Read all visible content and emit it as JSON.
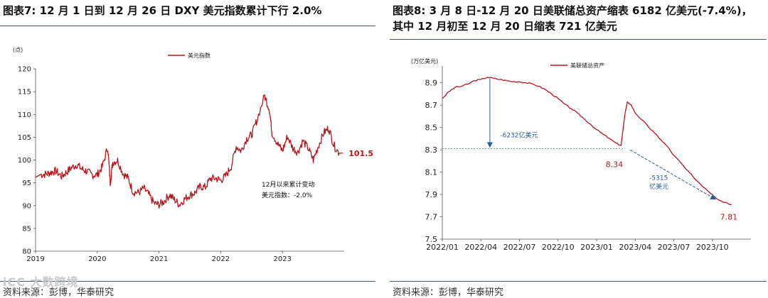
{
  "left": {
    "title": "图表7:  12 月 1 日到 12 月 26 日 DXY 美元指数累计下行 2.0%",
    "source": "资料来源：彭博，华泰研究",
    "watermark": "iCC 大数跨境"
  },
  "right": {
    "title_line1": "图表8:  3 月 8 日-12 月 20 日美联储总资产缩表 6182 亿美元(-7.4%)，",
    "title_line2": "其中 12 月初至 12 月 20 日缩表 721 亿美元",
    "source": "资料来源：彭博，华泰研究"
  },
  "colors": {
    "line": "#b4171c",
    "rule": "#3b5b86",
    "annotation": "#2a5c9c",
    "dashed_line": "#3aa66a"
  },
  "chart_data": [
    {
      "type": "line",
      "unit_label": "(点)",
      "series": [
        {
          "name": "美元指数"
        }
      ],
      "x_tick_labels": [
        "2019",
        "2020",
        "2021",
        "2022",
        "2023"
      ],
      "y_ticks": [
        80,
        85,
        90,
        95,
        100,
        105,
        110,
        115,
        120
      ],
      "ylim": [
        80,
        120
      ],
      "xlim": [
        2019.0,
        2024.0
      ],
      "points": [
        [
          2019.0,
          96.2
        ],
        [
          2019.08,
          96.8
        ],
        [
          2019.17,
          96.9
        ],
        [
          2019.25,
          97.3
        ],
        [
          2019.33,
          97.6
        ],
        [
          2019.42,
          96.4
        ],
        [
          2019.5,
          97.3
        ],
        [
          2019.58,
          98.3
        ],
        [
          2019.67,
          99.0
        ],
        [
          2019.75,
          98.0
        ],
        [
          2019.83,
          97.5
        ],
        [
          2019.92,
          96.7
        ],
        [
          2020.0,
          96.8
        ],
        [
          2020.08,
          98.5
        ],
        [
          2020.17,
          102.8
        ],
        [
          2020.21,
          95.0
        ],
        [
          2020.25,
          99.5
        ],
        [
          2020.33,
          99.9
        ],
        [
          2020.42,
          97.0
        ],
        [
          2020.5,
          96.0
        ],
        [
          2020.58,
          93.0
        ],
        [
          2020.67,
          92.8
        ],
        [
          2020.75,
          93.8
        ],
        [
          2020.83,
          92.5
        ],
        [
          2020.92,
          90.5
        ],
        [
          2021.0,
          90.2
        ],
        [
          2021.08,
          90.9
        ],
        [
          2021.17,
          92.4
        ],
        [
          2021.25,
          91.3
        ],
        [
          2021.33,
          90.2
        ],
        [
          2021.42,
          91.5
        ],
        [
          2021.5,
          92.3
        ],
        [
          2021.58,
          92.8
        ],
        [
          2021.67,
          94.2
        ],
        [
          2021.75,
          94.0
        ],
        [
          2021.83,
          95.9
        ],
        [
          2021.92,
          96.0
        ],
        [
          2022.0,
          95.5
        ],
        [
          2022.08,
          96.5
        ],
        [
          2022.17,
          98.6
        ],
        [
          2022.25,
          103.0
        ],
        [
          2022.33,
          102.0
        ],
        [
          2022.42,
          104.7
        ],
        [
          2022.5,
          105.5
        ],
        [
          2022.58,
          108.5
        ],
        [
          2022.71,
          114.1
        ],
        [
          2022.79,
          111.0
        ],
        [
          2022.83,
          106.0
        ],
        [
          2022.92,
          103.6
        ],
        [
          2023.0,
          102.0
        ],
        [
          2023.08,
          105.2
        ],
        [
          2023.17,
          102.6
        ],
        [
          2023.25,
          101.7
        ],
        [
          2023.33,
          104.2
        ],
        [
          2023.42,
          102.5
        ],
        [
          2023.5,
          100.0
        ],
        [
          2023.58,
          103.0
        ],
        [
          2023.67,
          106.0
        ],
        [
          2023.75,
          107.0
        ],
        [
          2023.83,
          103.3
        ],
        [
          2023.92,
          101.5
        ],
        [
          2023.98,
          101.5
        ]
      ],
      "end_value_label": "101.5",
      "annotation_line1": "12月以来累计变动",
      "annotation_line2": "美元指数：-2.0%"
    },
    {
      "type": "line",
      "unit_label": "(万亿美元)",
      "series": [
        {
          "name": "美联储总资产"
        }
      ],
      "x_tick_labels": [
        "2022/01",
        "2022/04",
        "2022/07",
        "2022/10",
        "2023/01",
        "2023/04",
        "2023/07",
        "2023/10"
      ],
      "y_ticks": [
        7.5,
        7.7,
        7.9,
        8.1,
        8.3,
        8.5,
        8.7,
        8.9
      ],
      "ylim": [
        7.5,
        9.0
      ],
      "xlim": [
        0,
        24
      ],
      "points": [
        [
          0.0,
          8.76
        ],
        [
          0.5,
          8.82
        ],
        [
          1.0,
          8.86
        ],
        [
          1.5,
          8.87
        ],
        [
          2.0,
          8.89
        ],
        [
          2.5,
          8.92
        ],
        [
          3.0,
          8.93
        ],
        [
          3.5,
          8.95
        ],
        [
          4.0,
          8.94
        ],
        [
          4.5,
          8.93
        ],
        [
          5.0,
          8.92
        ],
        [
          5.5,
          8.91
        ],
        [
          6.0,
          8.91
        ],
        [
          6.5,
          8.9
        ],
        [
          7.0,
          8.89
        ],
        [
          7.5,
          8.87
        ],
        [
          8.0,
          8.84
        ],
        [
          8.5,
          8.8
        ],
        [
          9.0,
          8.76
        ],
        [
          9.5,
          8.71
        ],
        [
          10.0,
          8.67
        ],
        [
          10.5,
          8.63
        ],
        [
          11.0,
          8.58
        ],
        [
          11.5,
          8.53
        ],
        [
          12.0,
          8.48
        ],
        [
          12.5,
          8.44
        ],
        [
          13.0,
          8.4
        ],
        [
          13.5,
          8.36
        ],
        [
          13.9,
          8.34
        ],
        [
          14.2,
          8.62
        ],
        [
          14.4,
          8.73
        ],
        [
          14.7,
          8.7
        ],
        [
          15.0,
          8.63
        ],
        [
          15.5,
          8.57
        ],
        [
          16.0,
          8.51
        ],
        [
          16.5,
          8.45
        ],
        [
          17.0,
          8.39
        ],
        [
          17.5,
          8.33
        ],
        [
          18.0,
          8.25
        ],
        [
          18.5,
          8.19
        ],
        [
          19.0,
          8.12
        ],
        [
          19.5,
          8.06
        ],
        [
          20.0,
          8.0
        ],
        [
          20.5,
          7.95
        ],
        [
          21.0,
          7.9
        ],
        [
          21.5,
          7.85
        ],
        [
          22.0,
          7.83
        ],
        [
          22.5,
          7.81
        ]
      ],
      "start_label": "8.34",
      "end_label": "7.81",
      "annotation_drop1": "-6232亿美元",
      "annotation_drop2_line1": "-5315",
      "annotation_drop2_line2": "亿美元"
    }
  ]
}
